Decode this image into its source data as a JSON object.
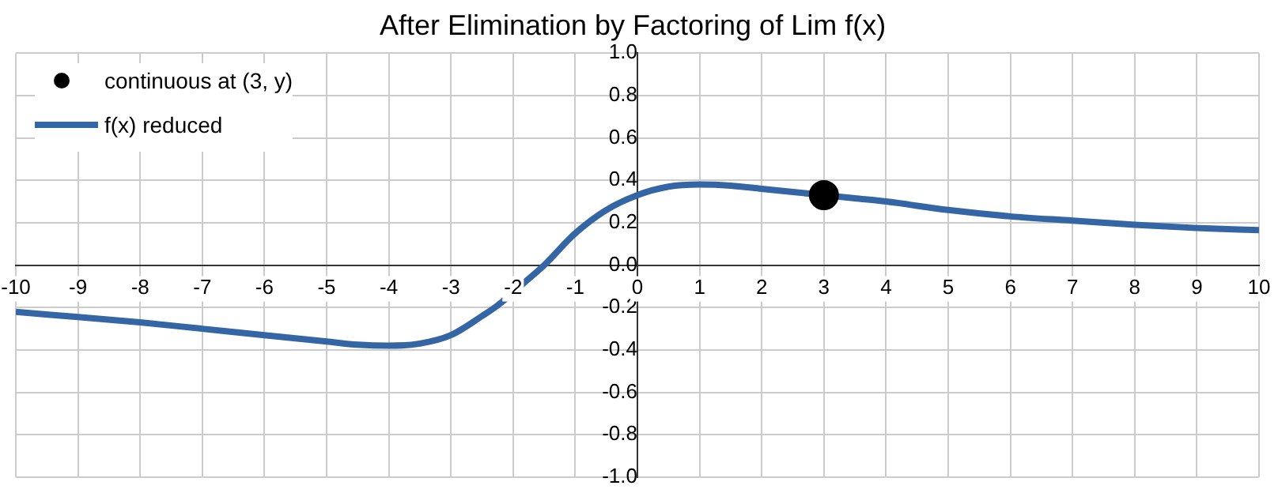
{
  "chart_data": {
    "type": "line",
    "title": "After Elimination by Factoring of Lim f(x)",
    "xlim": [
      -10,
      10
    ],
    "ylim": [
      -1,
      1
    ],
    "xticks": [
      -10,
      -9,
      -8,
      -7,
      -6,
      -5,
      -4,
      -3,
      -2,
      -1,
      0,
      1,
      2,
      3,
      4,
      5,
      6,
      7,
      8,
      9,
      10
    ],
    "yticks": [
      {
        "value": -1,
        "label": "-1.0"
      },
      -0.8,
      -0.6,
      -0.4,
      -0.2,
      {
        "value": 0,
        "label": "0.0"
      },
      0.2,
      0.4,
      0.6,
      0.8,
      {
        "value": 1,
        "label": "1.0"
      }
    ],
    "grid": true,
    "legend": "top left",
    "line_style": "solid",
    "series": [
      {
        "name": "continuous at (3, y)",
        "type": "scatter",
        "marker": "circle",
        "color": "#000000",
        "x": [
          3
        ],
        "values": [
          0.33
        ]
      },
      {
        "name": "f(x) reduced",
        "type": "line",
        "marker": "none",
        "color": "#3465a4",
        "x": [
          -10,
          -9,
          -8,
          -7,
          -6,
          -5,
          -4.5,
          -4,
          -3.5,
          -3,
          -2.5,
          -2.25,
          -1.75,
          -1.5,
          -1,
          -0.5,
          0,
          0.5,
          1,
          1.5,
          2,
          2.5,
          3.5,
          4,
          5,
          6,
          7,
          8,
          9,
          10
        ],
        "values": [
          -0.22,
          -0.245,
          -0.27,
          -0.3,
          -0.33,
          -0.36,
          -0.375,
          -0.38,
          -0.37,
          -0.33,
          -0.24,
          -0.19,
          -0.065,
          0.0,
          0.15,
          0.26,
          0.33,
          0.37,
          0.38,
          0.375,
          0.36,
          0.345,
          0.315,
          0.3,
          0.26,
          0.23,
          0.21,
          0.19,
          0.175,
          0.165
        ]
      }
    ]
  }
}
